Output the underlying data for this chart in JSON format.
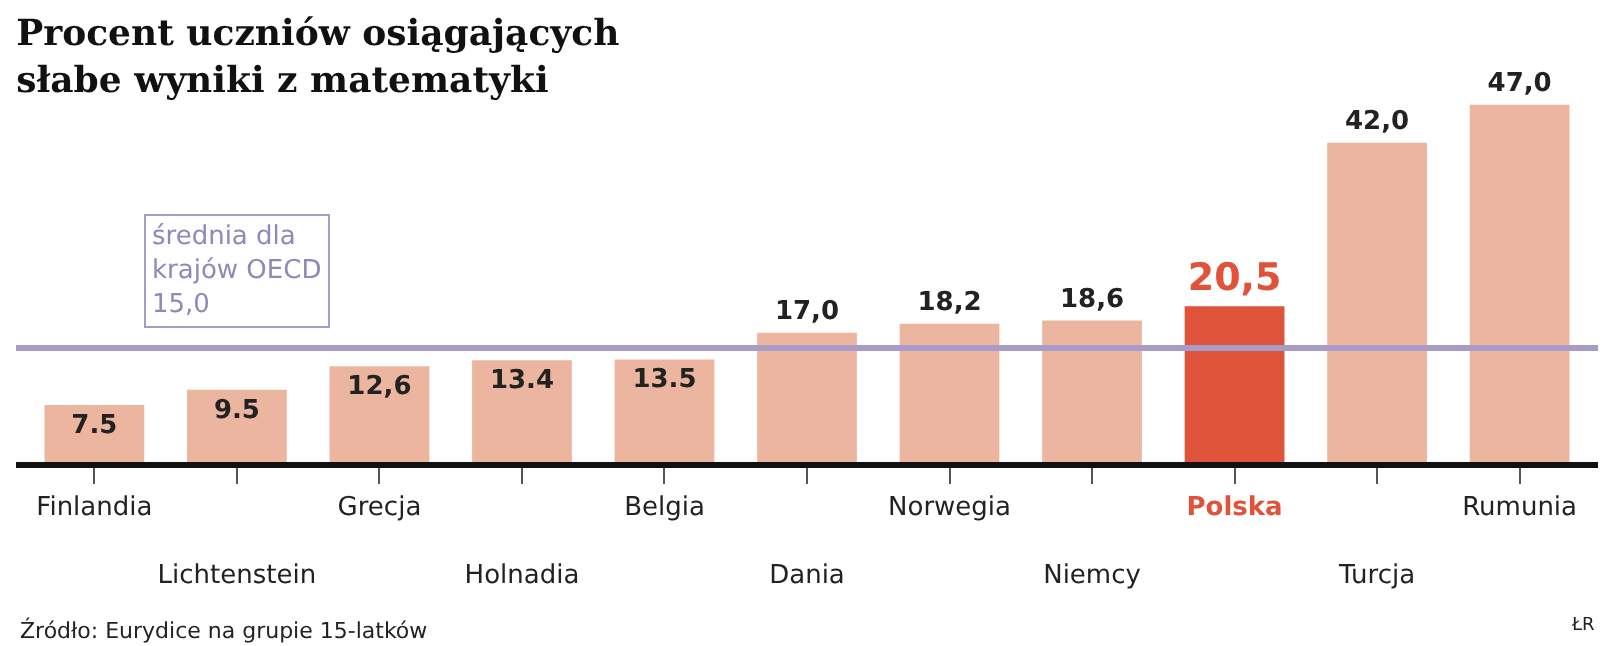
{
  "chart_data": {
    "type": "bar",
    "title": "Procent uczniów osiągających\nsłabe wyniki z matematyki",
    "categories": [
      "Finlandia",
      "Lichtenstein",
      "Grecja",
      "Holnadia",
      "Belgia",
      "Dania",
      "Norwegia",
      "Niemcy",
      "Polska",
      "Turcja",
      "Rumunia"
    ],
    "values": [
      7.5,
      9.5,
      12.6,
      13.4,
      13.5,
      17.0,
      18.2,
      18.6,
      20.5,
      42.0,
      47.0
    ],
    "value_labels": [
      "7.5",
      "9.5",
      "12,6",
      "13.4",
      "13.5",
      "17,0",
      "18,2",
      "18,6",
      "20,5",
      "42,0",
      "47,0"
    ],
    "colors": [
      "#ecb5a0",
      "#ecb5a0",
      "#ecb5a0",
      "#ecb5a0",
      "#ecb5a0",
      "#ecb5a0",
      "#ecb5a0",
      "#ecb5a0",
      "#e0533b",
      "#ecb5a0",
      "#ecb5a0"
    ],
    "ref_lines": [
      {
        "axis": "y",
        "value": 15.0,
        "label": "średnia dla\nkrajów OECD\n15,0",
        "color": "#a79cc8"
      }
    ],
    "annotations": [
      "Źródło: Eurydice na grupie 15-latków",
      "ŁR"
    ],
    "legend": false
  }
}
